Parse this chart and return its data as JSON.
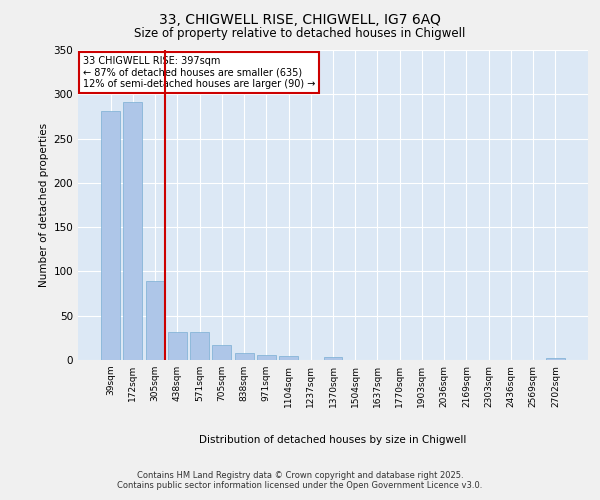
{
  "title_line1": "33, CHIGWELL RISE, CHIGWELL, IG7 6AQ",
  "title_line2": "Size of property relative to detached houses in Chigwell",
  "xlabel": "Distribution of detached houses by size in Chigwell",
  "ylabel": "Number of detached properties",
  "categories": [
    "39sqm",
    "172sqm",
    "305sqm",
    "438sqm",
    "571sqm",
    "705sqm",
    "838sqm",
    "971sqm",
    "1104sqm",
    "1237sqm",
    "1370sqm",
    "1504sqm",
    "1637sqm",
    "1770sqm",
    "1903sqm",
    "2036sqm",
    "2169sqm",
    "2303sqm",
    "2436sqm",
    "2569sqm",
    "2702sqm"
  ],
  "values": [
    281,
    291,
    89,
    32,
    32,
    17,
    8,
    6,
    4,
    0,
    3,
    0,
    0,
    0,
    0,
    0,
    0,
    0,
    0,
    0,
    2
  ],
  "bar_color": "#aec6e8",
  "bar_edge_color": "#7aafd4",
  "vline_color": "#cc0000",
  "annotation_text": "33 CHIGWELL RISE: 397sqm\n← 87% of detached houses are smaller (635)\n12% of semi-detached houses are larger (90) →",
  "annotation_box_color": "#cc0000",
  "ylim": [
    0,
    350
  ],
  "yticks": [
    0,
    50,
    100,
    150,
    200,
    250,
    300,
    350
  ],
  "bg_color": "#dce8f5",
  "grid_color": "#ffffff",
  "fig_bg_color": "#f0f0f0",
  "footer": "Contains HM Land Registry data © Crown copyright and database right 2025.\nContains public sector information licensed under the Open Government Licence v3.0."
}
